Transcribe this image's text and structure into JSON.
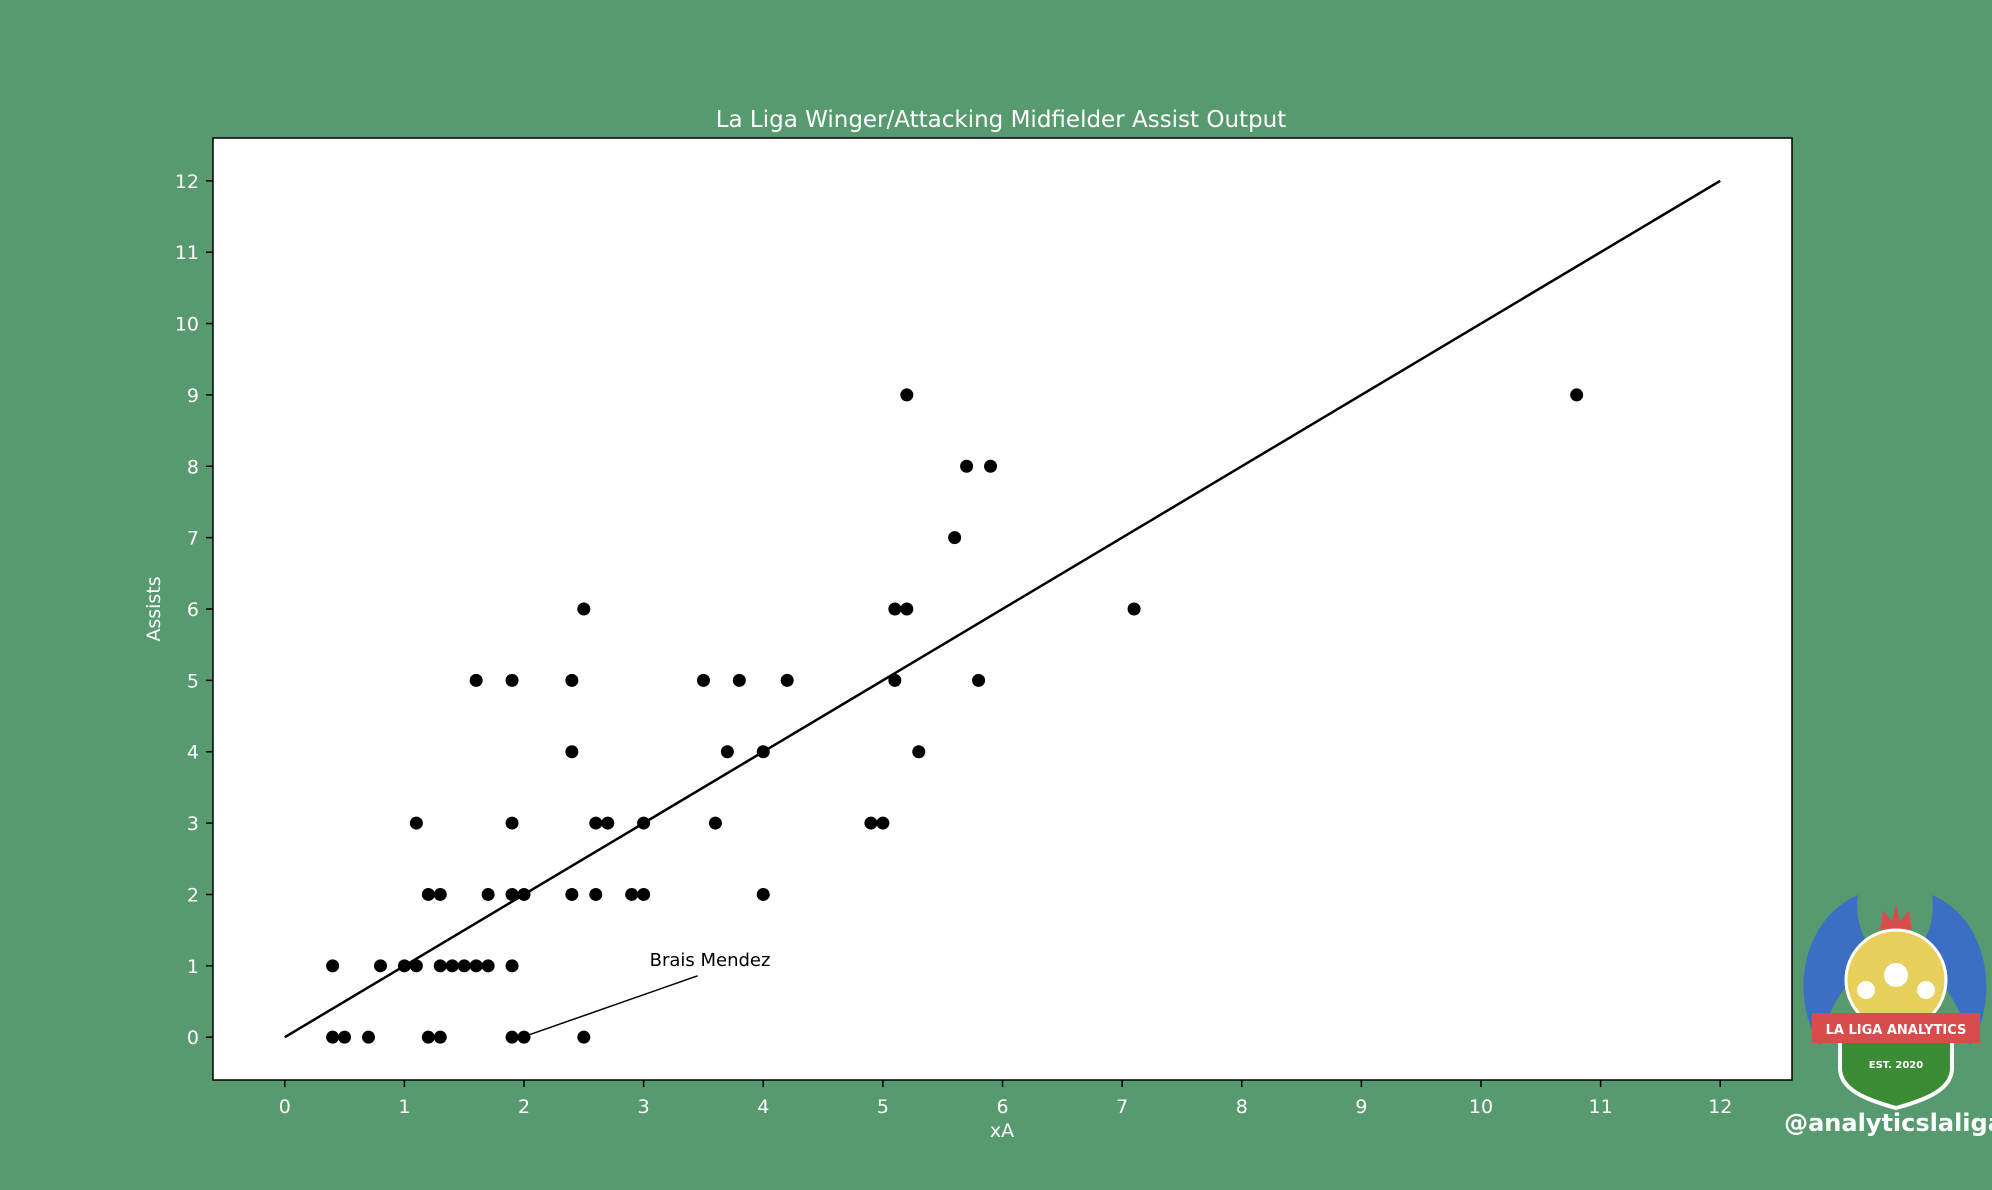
{
  "colors": {
    "background": "#579a6f",
    "plot_background": "#ffffff",
    "marker": "#000000",
    "line": "#000000"
  },
  "chart_data": {
    "type": "scatter",
    "title": "La Liga Winger/Attacking Midfielder Assist Output",
    "xlabel": "xA",
    "ylabel": "Assists",
    "xlim": [
      -0.6,
      12.6
    ],
    "ylim": [
      -0.6,
      12.6
    ],
    "xticks": [
      0,
      1,
      2,
      3,
      4,
      5,
      6,
      7,
      8,
      9,
      10,
      11,
      12
    ],
    "yticks": [
      0,
      1,
      2,
      3,
      4,
      5,
      6,
      7,
      8,
      9,
      10,
      11,
      12
    ],
    "grid": false,
    "reference_line": {
      "x": [
        0,
        12
      ],
      "y": [
        0,
        12
      ]
    },
    "points": [
      [
        0.4,
        0
      ],
      [
        0.5,
        0
      ],
      [
        0.7,
        0
      ],
      [
        1.2,
        0
      ],
      [
        1.3,
        0
      ],
      [
        1.9,
        0
      ],
      [
        2.0,
        0
      ],
      [
        2.5,
        0
      ],
      [
        0.4,
        1
      ],
      [
        0.8,
        1
      ],
      [
        1.0,
        1
      ],
      [
        1.1,
        1
      ],
      [
        1.3,
        1
      ],
      [
        1.4,
        1
      ],
      [
        1.5,
        1
      ],
      [
        1.6,
        1
      ],
      [
        1.7,
        1
      ],
      [
        1.9,
        1
      ],
      [
        1.2,
        2
      ],
      [
        1.3,
        2
      ],
      [
        1.7,
        2
      ],
      [
        1.9,
        2
      ],
      [
        2.0,
        2
      ],
      [
        2.4,
        2
      ],
      [
        2.6,
        2
      ],
      [
        2.9,
        2
      ],
      [
        3.0,
        2
      ],
      [
        4.0,
        2
      ],
      [
        1.1,
        3
      ],
      [
        1.9,
        3
      ],
      [
        2.6,
        3
      ],
      [
        2.7,
        3
      ],
      [
        3.0,
        3
      ],
      [
        3.6,
        3
      ],
      [
        4.9,
        3
      ],
      [
        5.0,
        3
      ],
      [
        2.4,
        4
      ],
      [
        3.7,
        4
      ],
      [
        4.0,
        4
      ],
      [
        5.3,
        4
      ],
      [
        1.6,
        5
      ],
      [
        1.9,
        5
      ],
      [
        2.4,
        5
      ],
      [
        3.5,
        5
      ],
      [
        3.8,
        5
      ],
      [
        4.2,
        5
      ],
      [
        5.1,
        5
      ],
      [
        5.8,
        5
      ],
      [
        2.5,
        6
      ],
      [
        5.1,
        6
      ],
      [
        5.2,
        6
      ],
      [
        7.1,
        6
      ],
      [
        5.6,
        7
      ],
      [
        5.7,
        8
      ],
      [
        5.9,
        8
      ],
      [
        5.2,
        9
      ],
      [
        10.8,
        9
      ]
    ],
    "annotation": {
      "text": "Brais Mendez",
      "point": [
        2.0,
        0
      ],
      "text_pos": [
        3.05,
        1.0
      ]
    }
  },
  "logo": {
    "banner_text": "LA LIGA ANALYTICS",
    "est_text": "EST. 2020",
    "handle": "@analyticslaliga"
  }
}
